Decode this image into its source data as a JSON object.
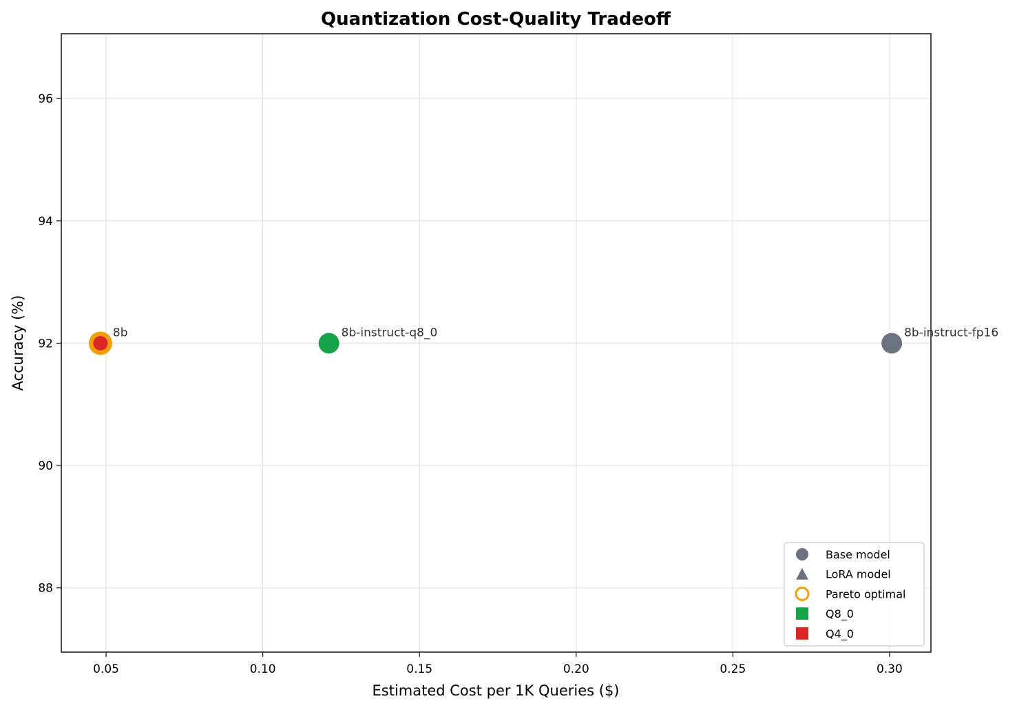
{
  "chart_data": {
    "type": "scatter",
    "title": "Quantization Cost-Quality Tradeoff",
    "xlabel": "Estimated Cost per 1K Queries ($)",
    "ylabel": "Accuracy (%)",
    "xlim": [
      0.0357,
      0.3132
    ],
    "ylim": [
      86.95,
      97.06
    ],
    "xticks": [
      0.05,
      0.1,
      0.15,
      0.2,
      0.25,
      0.3
    ],
    "xtick_labels": [
      "0.05",
      "0.10",
      "0.15",
      "0.20",
      "0.25",
      "0.30"
    ],
    "yticks": [
      88,
      90,
      92,
      94,
      96
    ],
    "ytick_labels": [
      "88",
      "90",
      "92",
      "94",
      "96"
    ],
    "grid": true,
    "legend_position": "lower right",
    "points": [
      {
        "label": "8b",
        "x": 0.0482,
        "y": 92.0,
        "quant": "Q4_0",
        "type": "Base model",
        "color": "#dc2626",
        "pareto_optimal": true
      },
      {
        "label": "8b-instruct-q8_0",
        "x": 0.1211,
        "y": 92.0,
        "quant": "Q8_0",
        "type": "Base model",
        "color": "#16a34a",
        "pareto_optimal": false
      },
      {
        "label": "8b-instruct-fp16",
        "x": 0.3007,
        "y": 92.0,
        "quant": "FP16",
        "type": "Base model",
        "color": "#6b7280",
        "pareto_optimal": false
      }
    ],
    "legend": [
      {
        "label": "Base model",
        "marker": "circle",
        "color": "#6b7280"
      },
      {
        "label": "LoRA model",
        "marker": "triangle",
        "color": "#6b7280"
      },
      {
        "label": "Pareto optimal",
        "marker": "ring",
        "color": "#f59e0b"
      },
      {
        "label": "Q8_0",
        "marker": "square",
        "color": "#16a34a"
      },
      {
        "label": "Q4_0",
        "marker": "square",
        "color": "#dc2626"
      }
    ]
  },
  "colors": {
    "pareto": "#f59e0b",
    "axis": "#222222",
    "grid": "#e6e6e6",
    "annotation": "#333333"
  }
}
